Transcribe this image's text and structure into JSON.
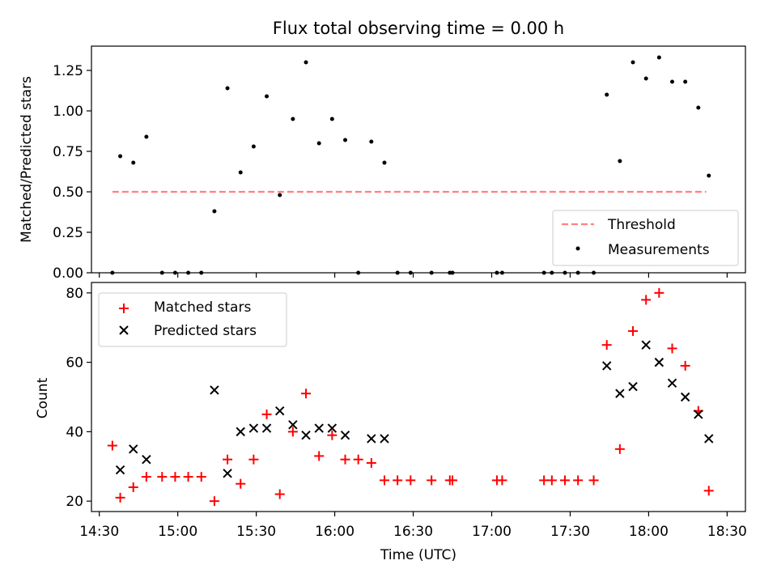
{
  "chart_data": [
    {
      "type": "scatter",
      "title": "Flux total observing time = 0.00 h",
      "ylabel": "Matched/Predicted stars",
      "xlabel": "",
      "xlim": [
        "14:27",
        "18:37"
      ],
      "ylim": [
        0,
        1.4
      ],
      "yticks": [
        "0.00",
        "0.25",
        "0.50",
        "0.75",
        "1.00",
        "1.25"
      ],
      "legend_position": "bottom-right",
      "grid": false,
      "threshold": {
        "name": "Threshold",
        "value": 0.5,
        "x_start": "14:35",
        "x_end": "18:22",
        "color": "#ff8080"
      },
      "series": [
        {
          "name": "Measurements",
          "color": "#000000",
          "points": [
            [
              "14:35",
              0
            ],
            [
              "14:38",
              0.72
            ],
            [
              "14:43",
              0.68
            ],
            [
              "14:48",
              0.84
            ],
            [
              "14:54",
              0
            ],
            [
              "14:59",
              0
            ],
            [
              "15:04",
              0
            ],
            [
              "15:09",
              0
            ],
            [
              "15:14",
              0.38
            ],
            [
              "15:19",
              1.14
            ],
            [
              "15:24",
              0.62
            ],
            [
              "15:29",
              0.78
            ],
            [
              "15:34",
              1.09
            ],
            [
              "15:39",
              0.48
            ],
            [
              "15:44",
              0.95
            ],
            [
              "15:49",
              1.3
            ],
            [
              "15:54",
              0.8
            ],
            [
              "15:59",
              0.95
            ],
            [
              "16:04",
              0.82
            ],
            [
              "16:09",
              0
            ],
            [
              "16:14",
              0.81
            ],
            [
              "16:19",
              0.68
            ],
            [
              "16:24",
              0
            ],
            [
              "16:29",
              0
            ],
            [
              "16:37",
              0
            ],
            [
              "16:44",
              0
            ],
            [
              "16:45",
              0
            ],
            [
              "17:02",
              0
            ],
            [
              "17:04",
              0
            ],
            [
              "17:20",
              0
            ],
            [
              "17:23",
              0
            ],
            [
              "17:28",
              0
            ],
            [
              "17:33",
              0
            ],
            [
              "17:39",
              0
            ],
            [
              "17:44",
              1.1
            ],
            [
              "17:49",
              0.69
            ],
            [
              "17:54",
              1.3
            ],
            [
              "17:59",
              1.2
            ],
            [
              "18:04",
              1.33
            ],
            [
              "18:09",
              1.18
            ],
            [
              "18:14",
              1.18
            ],
            [
              "18:19",
              1.02
            ],
            [
              "18:23",
              0.6
            ]
          ]
        }
      ]
    },
    {
      "type": "scatter",
      "title": "",
      "xlabel": "Time (UTC)",
      "ylabel": "Count",
      "xlim": [
        "14:27",
        "18:37"
      ],
      "ylim": [
        17,
        83
      ],
      "yticks": [
        "20",
        "40",
        "60",
        "80"
      ],
      "xticks": [
        "14:30",
        "15:00",
        "15:30",
        "16:00",
        "16:30",
        "17:00",
        "17:30",
        "18:00",
        "18:30"
      ],
      "legend_position": "top-left",
      "grid": false,
      "series": [
        {
          "name": "Matched stars",
          "marker": "plus",
          "color": "#ff0000",
          "points": [
            [
              "14:35",
              36
            ],
            [
              "14:38",
              21
            ],
            [
              "14:43",
              24
            ],
            [
              "14:48",
              27
            ],
            [
              "14:54",
              27
            ],
            [
              "14:59",
              27
            ],
            [
              "15:04",
              27
            ],
            [
              "15:09",
              27
            ],
            [
              "15:14",
              20
            ],
            [
              "15:19",
              32
            ],
            [
              "15:24",
              25
            ],
            [
              "15:29",
              32
            ],
            [
              "15:34",
              45
            ],
            [
              "15:39",
              22
            ],
            [
              "15:44",
              40
            ],
            [
              "15:49",
              51
            ],
            [
              "15:54",
              33
            ],
            [
              "15:59",
              39
            ],
            [
              "16:04",
              32
            ],
            [
              "16:09",
              32
            ],
            [
              "16:14",
              31
            ],
            [
              "16:19",
              26
            ],
            [
              "16:24",
              26
            ],
            [
              "16:29",
              26
            ],
            [
              "16:37",
              26
            ],
            [
              "16:44",
              26
            ],
            [
              "16:45",
              26
            ],
            [
              "17:02",
              26
            ],
            [
              "17:04",
              26
            ],
            [
              "17:20",
              26
            ],
            [
              "17:23",
              26
            ],
            [
              "17:28",
              26
            ],
            [
              "17:33",
              26
            ],
            [
              "17:39",
              26
            ],
            [
              "17:44",
              65
            ],
            [
              "17:49",
              35
            ],
            [
              "17:54",
              69
            ],
            [
              "17:59",
              78
            ],
            [
              "18:04",
              80
            ],
            [
              "18:09",
              64
            ],
            [
              "18:14",
              59
            ],
            [
              "18:19",
              46
            ],
            [
              "18:23",
              23
            ]
          ]
        },
        {
          "name": "Predicted stars",
          "marker": "x",
          "color": "#000000",
          "points": [
            [
              "14:38",
              29
            ],
            [
              "14:43",
              35
            ],
            [
              "14:48",
              32
            ],
            [
              "15:14",
              52
            ],
            [
              "15:19",
              28
            ],
            [
              "15:24",
              40
            ],
            [
              "15:29",
              41
            ],
            [
              "15:34",
              41
            ],
            [
              "15:39",
              46
            ],
            [
              "15:44",
              42
            ],
            [
              "15:49",
              39
            ],
            [
              "15:54",
              41
            ],
            [
              "15:59",
              41
            ],
            [
              "16:04",
              39
            ],
            [
              "16:14",
              38
            ],
            [
              "16:19",
              38
            ],
            [
              "17:44",
              59
            ],
            [
              "17:49",
              51
            ],
            [
              "17:54",
              53
            ],
            [
              "17:59",
              65
            ],
            [
              "18:04",
              60
            ],
            [
              "18:09",
              54
            ],
            [
              "18:14",
              50
            ],
            [
              "18:19",
              45
            ],
            [
              "18:23",
              38
            ]
          ]
        }
      ]
    }
  ]
}
